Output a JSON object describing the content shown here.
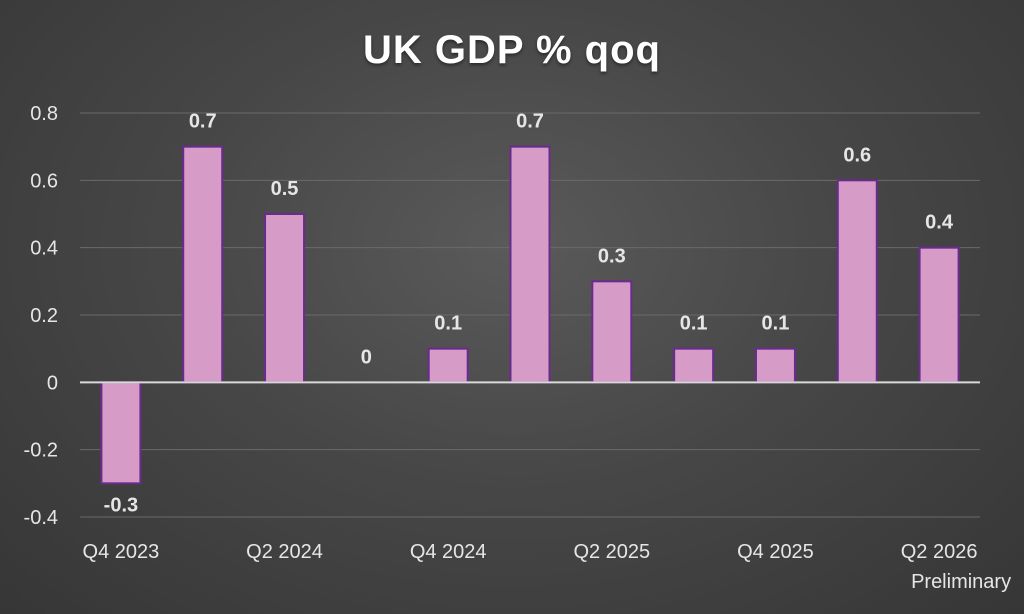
{
  "chart_data": {
    "type": "bar",
    "title": "UK GDP % qoq",
    "categories": [
      "Q4 2023",
      "Q1 2024",
      "Q2 2024",
      "Q3 2024",
      "Q4 2024",
      "Q1 2025",
      "Q2 2025",
      "Q3 2025",
      "Q4 2025",
      "Q1 2026",
      "Q2 2026"
    ],
    "category_labels": [
      "Q4 2023",
      "",
      "Q2 2024",
      "",
      "Q4 2024",
      "",
      "Q2 2025",
      "",
      "Q4 2025",
      "",
      "Q2 2026"
    ],
    "values": [
      -0.3,
      0.7,
      0.5,
      0,
      0.1,
      0.7,
      0.3,
      0.1,
      0.1,
      0.6,
      0.4
    ],
    "data_labels": [
      "-0.3",
      "0.7",
      "0.5",
      "0",
      "0.1",
      "0.7",
      "0.3",
      "0.1",
      "0.1",
      "0.6",
      "0.4"
    ],
    "y_ticks": [
      "0.8",
      "0.6",
      "0.4",
      "0.2",
      "0",
      "-0.2",
      "-0.4"
    ],
    "y_tick_values": [
      0.8,
      0.6,
      0.4,
      0.2,
      0,
      -0.2,
      -0.4
    ],
    "ylim": [
      -0.4,
      0.8
    ],
    "grid": true,
    "legend": "none",
    "annotation": "Preliminary",
    "colors": {
      "bar_fill": "#d69bc7",
      "bar_stroke": "#6a2b8e",
      "grid": "#6a6a6a",
      "zero_line": "#d9d9d9"
    }
  }
}
